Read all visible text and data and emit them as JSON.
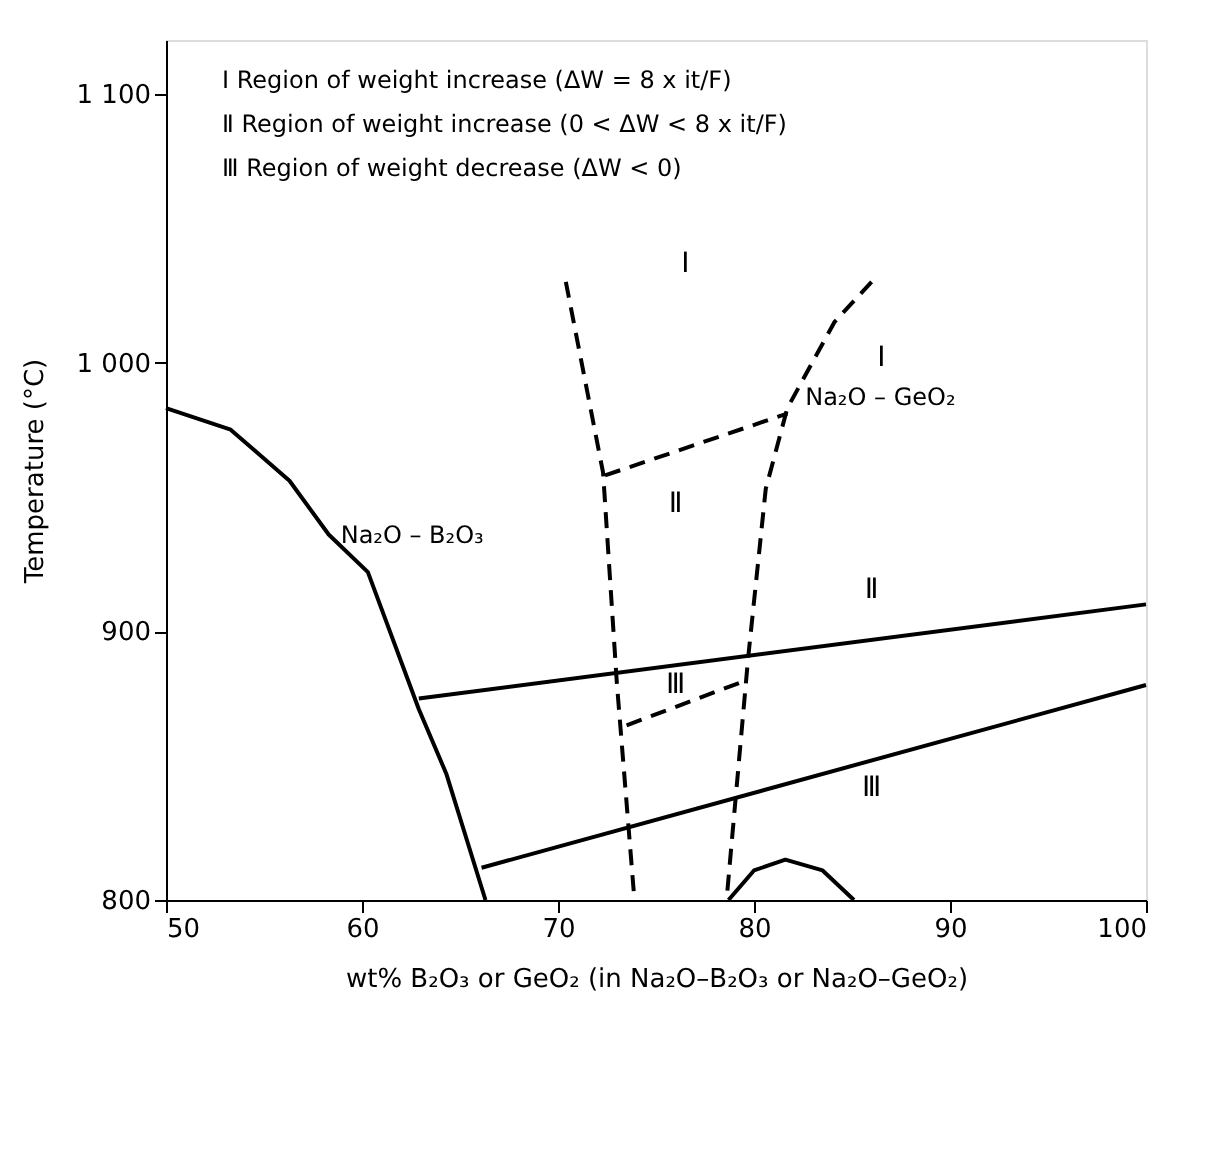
{
  "chart_data": {
    "type": "line",
    "xlabel": "wt% B₂O₃ or GeO₂ (in Na₂O–B₂O₃ or Na₂O–GeO₂)",
    "ylabel": "Temperature (°C)",
    "xlim": [
      50,
      100
    ],
    "xticks": [
      50,
      60,
      70,
      80,
      90,
      100
    ],
    "ylim": [
      800,
      1120
    ],
    "yticks": [
      800,
      900,
      {
        "value": 1000,
        "label": "1 000"
      },
      {
        "value": 1100,
        "label": "1 100"
      }
    ],
    "grid": false,
    "series": [
      {
        "color": "#000000",
        "line_style": "solid",
        "x": [
          50,
          53.3,
          56.3,
          58.3,
          60.3,
          62.9,
          64.3,
          66.3
        ],
        "values": [
          983,
          975,
          956,
          936,
          922,
          871,
          847,
          800
        ]
      },
      {
        "color": "#000000",
        "line_style": "solid",
        "x": [
          62.9,
          100
        ],
        "values": [
          875,
          910
        ]
      },
      {
        "color": "#000000",
        "line_style": "solid",
        "x": [
          66.1,
          100
        ],
        "values": [
          812,
          880
        ]
      },
      {
        "color": "#000000",
        "line_style": "dashed",
        "x": [
          70.4,
          72.3,
          73.0,
          73.9
        ],
        "values": [
          1030,
          959,
          881,
          800
        ]
      },
      {
        "color": "#000000",
        "line_style": "dashed",
        "x": [
          86.0,
          84.1,
          81.7,
          80.6,
          79.7,
          78.6
        ],
        "values": [
          1030,
          1015,
          983,
          953,
          890,
          800
        ]
      },
      {
        "color": "#000000",
        "line_style": "dashed",
        "x": [
          72.4,
          81.7
        ],
        "values": [
          958,
          981
        ]
      },
      {
        "color": "#000000",
        "line_style": "dashed",
        "x": [
          73.5,
          79.7
        ],
        "values": [
          865,
          882
        ]
      },
      {
        "color": "#000000",
        "line_style": "solid",
        "x": [
          78.7,
          80.0,
          81.6,
          83.5,
          85.1
        ],
        "values": [
          800,
          811,
          815,
          811,
          800
        ]
      }
    ],
    "annotations": [
      "Ⅰ  Region of weight increase  (ΔW = 8 x it/F)",
      "Ⅱ  Region of weight increase  (0 < ΔW < 8 x it/F)",
      "Ⅲ  Region of weight decrease  (ΔW < 0)",
      {
        "text": "Na₂O – B₂O₃",
        "x": 58.3,
        "y": 936
      },
      {
        "text": "Na₂O – GeO₂",
        "x": 82.0,
        "y": 987
      },
      "Ⅰ",
      "Ⅰ",
      "Ⅱ",
      "Ⅱ",
      "Ⅲ",
      "Ⅲ"
    ]
  }
}
